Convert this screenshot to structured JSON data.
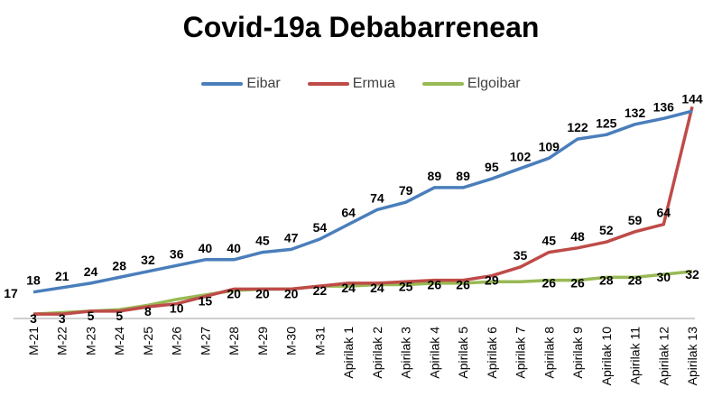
{
  "chart_data": {
    "type": "line",
    "title": "Covid-19a Debabarrenean",
    "xlabel": "",
    "ylabel": "",
    "grid": false,
    "legend_position": "top",
    "categories": [
      "M-21",
      "M-22",
      "M-23",
      "M-24",
      "M-25",
      "M-26",
      "M-27",
      "M-28",
      "M-29",
      "M-30",
      "M-31",
      "Apirilak 1",
      "Apirilak 2",
      "Apirilak 3",
      "Apirilak 4",
      "Apirilak 5",
      "Apirilak 6",
      "Apirilak 7",
      "Apirilak 8",
      "Apirilak 9",
      "Apirilak 10",
      "Apirilak 11",
      "Apirilak 12",
      "Apirilak 13"
    ],
    "series": [
      {
        "name": "Eibar",
        "color": "#4a7ebb",
        "values": [
          18,
          21,
          24,
          28,
          32,
          36,
          40,
          40,
          45,
          47,
          54,
          64,
          74,
          79,
          89,
          89,
          95,
          102,
          109,
          122,
          125,
          132,
          136,
          141
        ],
        "labels": [
          "18",
          "21",
          "24",
          "28",
          "32",
          "36",
          "40",
          "40",
          "45",
          "47",
          "54",
          "64",
          "74",
          "79",
          "89",
          "89",
          "95",
          "102",
          "109",
          "122",
          "125",
          "132",
          "136",
          ""
        ]
      },
      {
        "name": "Ermua",
        "color": "#be4b48",
        "values": [
          3,
          3,
          5,
          5,
          8,
          10,
          15,
          20,
          20,
          20,
          22,
          24,
          24,
          25,
          26,
          26,
          29,
          35,
          45,
          48,
          52,
          59,
          64,
          144
        ],
        "labels": [
          "3",
          "3",
          "5",
          "5",
          "8",
          "10",
          "15",
          "20",
          "20",
          "20",
          "22",
          "24",
          "24",
          "25",
          "26",
          "26",
          "29",
          "35",
          "45",
          "48",
          "52",
          "59",
          "64",
          "144"
        ]
      },
      {
        "name": "Elgoibar",
        "color": "#98b954",
        "values": [
          3,
          4,
          5,
          6,
          9,
          13,
          16,
          19,
          20,
          20,
          22,
          22,
          23,
          23,
          24,
          24,
          25,
          25,
          26,
          26,
          28,
          28,
          30,
          32
        ],
        "labels": [
          "",
          "",
          "",
          "",
          "",
          "",
          "",
          "",
          "",
          "",
          "",
          "",
          "",
          "",
          "",
          "",
          "",
          "",
          "26",
          "26",
          "28",
          "28",
          "30",
          "32"
        ]
      }
    ],
    "extra_labels": [
      {
        "text": "17",
        "x": 12,
        "y": 330
      }
    ],
    "ylim": [
      0,
      150
    ]
  },
  "legend": [
    {
      "name": "Eibar",
      "color": "#4a7ebb"
    },
    {
      "name": "Ermua",
      "color": "#be4b48"
    },
    {
      "name": "Elgoibar",
      "color": "#98b954"
    }
  ]
}
